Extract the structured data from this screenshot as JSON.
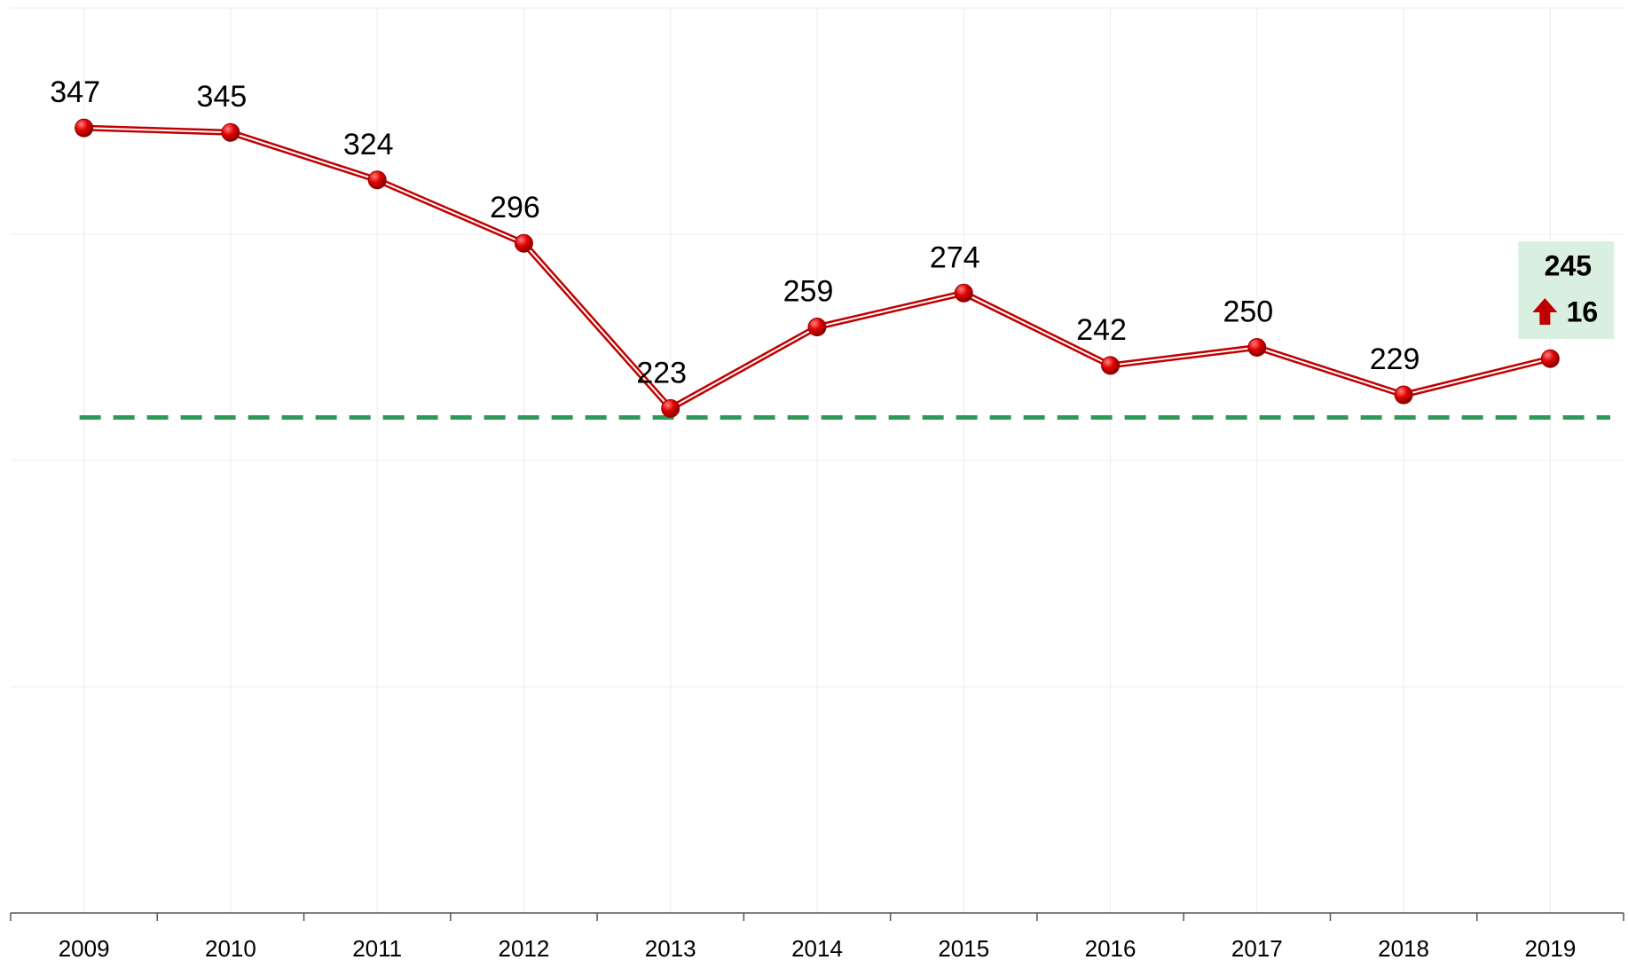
{
  "chart_data": {
    "type": "line",
    "categories": [
      "2009",
      "2010",
      "2011",
      "2012",
      "2013",
      "2014",
      "2015",
      "2016",
      "2017",
      "2018",
      "2019"
    ],
    "series": [
      {
        "color": "#c00000",
        "values": [
          347,
          345,
          324,
          296,
          223,
          259,
          274,
          242,
          250,
          229,
          245
        ]
      }
    ],
    "ylim": [
      0,
      400
    ],
    "yticks": [
      0,
      100,
      200,
      300,
      400
    ],
    "grid": true,
    "reference_line": {
      "value": 219,
      "color": "#2e9a5a"
    },
    "change": 16
  }
}
